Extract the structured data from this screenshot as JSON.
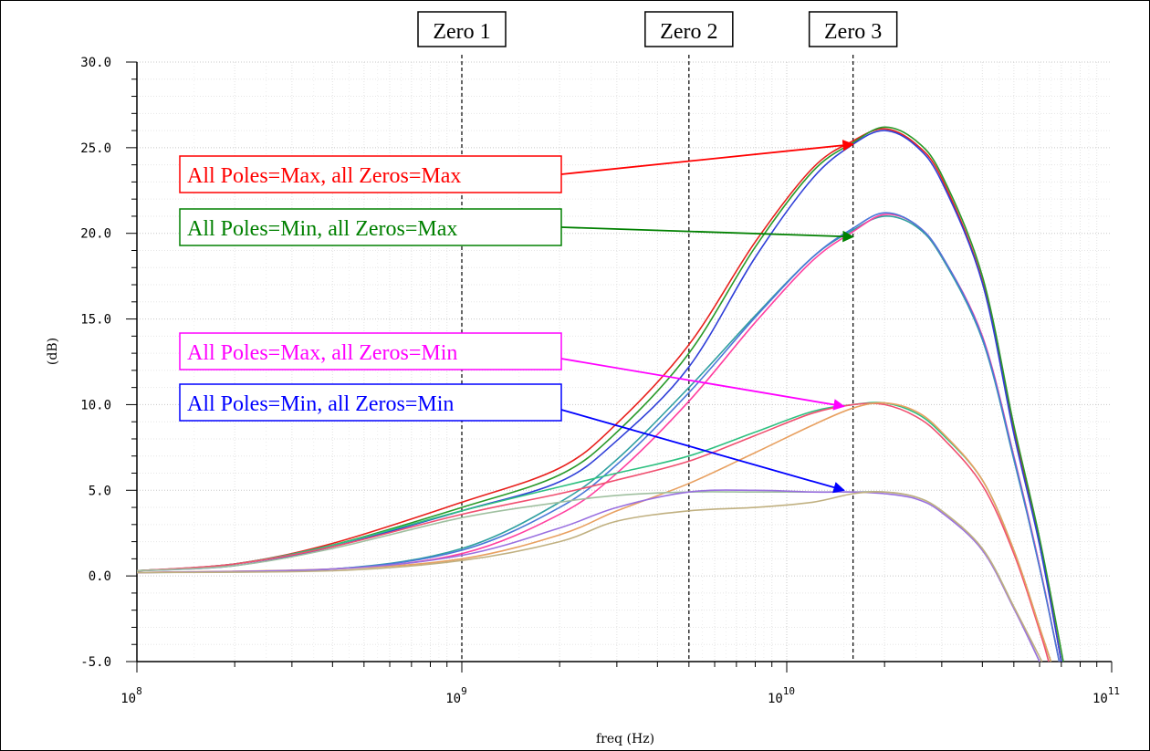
{
  "chart_data": {
    "type": "line",
    "title": "",
    "xlabel": "freq (Hz)",
    "ylabel": "(dB)",
    "xscale": "log",
    "xlim": [
      100000000,
      100000000000
    ],
    "ylim": [
      -5,
      30
    ],
    "grid": true,
    "x_ticks": [
      {
        "value": 100000000,
        "base": "10",
        "exp": "8"
      },
      {
        "value": 1000000000,
        "base": "10",
        "exp": "9"
      },
      {
        "value": 10000000000,
        "base": "10",
        "exp": "10"
      },
      {
        "value": 100000000000,
        "base": "10",
        "exp": "11"
      }
    ],
    "y_ticks": [
      "30.0",
      "25.0",
      "20.0",
      "15.0",
      "10.0",
      "5.0",
      "0.0",
      "-5.0"
    ],
    "markers": [
      {
        "label": "Zero 1",
        "x": 1000000000
      },
      {
        "label": "Zero 2",
        "x": 5000000000
      },
      {
        "label": "Zero 3",
        "x": 16000000000
      }
    ],
    "annotations": [
      {
        "text": "All Poles=Max, all Zeros=Max",
        "color": "#ff0000",
        "target_x": 16000000000,
        "target_y": 25.2
      },
      {
        "text": "All Poles=Min, all Zeros=Max",
        "color": "#008000",
        "target_x": 16000000000,
        "target_y": 19.8
      },
      {
        "text": "All Poles=Max, all Zeros=Min",
        "color": "#ff00ff",
        "target_x": 15000000000,
        "target_y": 9.9
      },
      {
        "text": "All Poles=Min, all Zeros=Min",
        "color": "#0000ff",
        "target_x": 15000000000,
        "target_y": 5.0
      }
    ],
    "series": [
      {
        "color": "#e8201c",
        "points": [
          [
            100000000,
            0.3
          ],
          [
            200000000,
            0.7
          ],
          [
            400000000,
            1.9
          ],
          [
            1000000000,
            4.3
          ],
          [
            2000000000,
            6.3
          ],
          [
            3000000000,
            8.9
          ],
          [
            5000000000,
            13.5
          ],
          [
            8000000000,
            19.5
          ],
          [
            12000000000,
            23.8
          ],
          [
            16000000000,
            25.4
          ],
          [
            20000000000,
            26.1
          ],
          [
            25000000000,
            25.2
          ],
          [
            30000000000,
            23.2
          ],
          [
            40000000000,
            17.2
          ],
          [
            50000000000,
            8.5
          ],
          [
            60000000000,
            2.0
          ],
          [
            70000000000,
            -5.0
          ]
        ]
      },
      {
        "color": "#2a9a2a",
        "points": [
          [
            100000000,
            0.3
          ],
          [
            200000000,
            0.7
          ],
          [
            400000000,
            1.8
          ],
          [
            1000000000,
            4.0
          ],
          [
            2000000000,
            5.9
          ],
          [
            3000000000,
            8.4
          ],
          [
            5000000000,
            13.0
          ],
          [
            8000000000,
            19.2
          ],
          [
            12000000000,
            23.6
          ],
          [
            16000000000,
            25.3
          ],
          [
            20000000000,
            26.2
          ],
          [
            25000000000,
            25.4
          ],
          [
            30000000000,
            23.4
          ],
          [
            40000000000,
            17.5
          ],
          [
            50000000000,
            8.8
          ],
          [
            60000000000,
            2.2
          ],
          [
            71000000000,
            -5.0
          ]
        ]
      },
      {
        "color": "#2f3fd8",
        "points": [
          [
            100000000,
            0.3
          ],
          [
            200000000,
            0.6
          ],
          [
            400000000,
            1.7
          ],
          [
            1000000000,
            3.8
          ],
          [
            2000000000,
            5.5
          ],
          [
            3000000000,
            7.9
          ],
          [
            5000000000,
            12.2
          ],
          [
            8000000000,
            18.6
          ],
          [
            12000000000,
            23.2
          ],
          [
            16000000000,
            25.2
          ],
          [
            20000000000,
            26.0
          ],
          [
            25000000000,
            25.1
          ],
          [
            30000000000,
            23.0
          ],
          [
            40000000000,
            17.1
          ],
          [
            50000000000,
            8.3
          ],
          [
            60000000000,
            1.8
          ],
          [
            70000000000,
            -5.0
          ]
        ]
      },
      {
        "color": "#30a0a0",
        "points": [
          [
            100000000,
            0.2
          ],
          [
            400000000,
            0.4
          ],
          [
            1000000000,
            1.6
          ],
          [
            2000000000,
            4.3
          ],
          [
            3000000000,
            6.8
          ],
          [
            5000000000,
            11.0
          ],
          [
            8000000000,
            15.2
          ],
          [
            12000000000,
            18.6
          ],
          [
            16000000000,
            20.2
          ],
          [
            20000000000,
            21.0
          ],
          [
            25000000000,
            20.4
          ],
          [
            30000000000,
            18.6
          ],
          [
            40000000000,
            13.8
          ],
          [
            50000000000,
            6.8
          ],
          [
            60000000000,
            0.5
          ],
          [
            69000000000,
            -5.0
          ]
        ]
      },
      {
        "color": "#ff40a0",
        "points": [
          [
            100000000,
            0.2
          ],
          [
            400000000,
            0.4
          ],
          [
            1000000000,
            1.3
          ],
          [
            2000000000,
            3.6
          ],
          [
            3000000000,
            6.0
          ],
          [
            5000000000,
            10.2
          ],
          [
            8000000000,
            14.8
          ],
          [
            12000000000,
            18.4
          ],
          [
            16000000000,
            20.1
          ],
          [
            20000000000,
            21.1
          ],
          [
            25000000000,
            20.5
          ],
          [
            30000000000,
            18.7
          ],
          [
            40000000000,
            14.0
          ],
          [
            50000000000,
            7.0
          ],
          [
            60000000000,
            0.6
          ],
          [
            69000000000,
            -5.0
          ]
        ]
      },
      {
        "color": "#4a78d8",
        "points": [
          [
            100000000,
            0.2
          ],
          [
            400000000,
            0.4
          ],
          [
            1000000000,
            1.5
          ],
          [
            2000000000,
            4.0
          ],
          [
            3000000000,
            6.5
          ],
          [
            5000000000,
            10.7
          ],
          [
            8000000000,
            15.1
          ],
          [
            12000000000,
            18.6
          ],
          [
            16000000000,
            20.3
          ],
          [
            20000000000,
            21.2
          ],
          [
            25000000000,
            20.5
          ],
          [
            30000000000,
            18.7
          ],
          [
            40000000000,
            13.9
          ],
          [
            50000000000,
            6.9
          ],
          [
            60000000000,
            0.5
          ],
          [
            69000000000,
            -5.0
          ]
        ]
      },
      {
        "color": "#2ec080",
        "points": [
          [
            100000000,
            0.3
          ],
          [
            200000000,
            0.7
          ],
          [
            400000000,
            1.8
          ],
          [
            1000000000,
            3.8
          ],
          [
            2000000000,
            5.2
          ],
          [
            3000000000,
            6.0
          ],
          [
            5000000000,
            7.0
          ],
          [
            8000000000,
            8.4
          ],
          [
            12000000000,
            9.6
          ],
          [
            16000000000,
            10.0
          ],
          [
            20000000000,
            10.1
          ],
          [
            25000000000,
            9.5
          ],
          [
            30000000000,
            8.3
          ],
          [
            40000000000,
            5.6
          ],
          [
            50000000000,
            1.5
          ],
          [
            60000000000,
            -3.0
          ],
          [
            65000000000,
            -5.0
          ]
        ]
      },
      {
        "color": "#f05070",
        "points": [
          [
            100000000,
            0.3
          ],
          [
            200000000,
            0.7
          ],
          [
            400000000,
            1.7
          ],
          [
            1000000000,
            3.6
          ],
          [
            2000000000,
            4.8
          ],
          [
            3000000000,
            5.6
          ],
          [
            5000000000,
            6.7
          ],
          [
            8000000000,
            8.2
          ],
          [
            12000000000,
            9.5
          ],
          [
            16000000000,
            10.0
          ],
          [
            20000000000,
            10.0
          ],
          [
            25000000000,
            9.3
          ],
          [
            30000000000,
            8.1
          ],
          [
            40000000000,
            5.3
          ],
          [
            50000000000,
            1.3
          ],
          [
            60000000000,
            -3.2
          ],
          [
            64000000000,
            -5.0
          ]
        ]
      },
      {
        "color": "#e8a060",
        "points": [
          [
            100000000,
            0.2
          ],
          [
            400000000,
            0.4
          ],
          [
            1000000000,
            1.0
          ],
          [
            2000000000,
            2.4
          ],
          [
            3000000000,
            3.8
          ],
          [
            5000000000,
            5.4
          ],
          [
            8000000000,
            7.2
          ],
          [
            12000000000,
            8.8
          ],
          [
            16000000000,
            9.8
          ],
          [
            20000000000,
            10.1
          ],
          [
            25000000000,
            9.6
          ],
          [
            30000000000,
            8.4
          ],
          [
            40000000000,
            5.6
          ],
          [
            50000000000,
            1.5
          ],
          [
            60000000000,
            -3.0
          ],
          [
            65000000000,
            -5.0
          ]
        ]
      },
      {
        "color": "#a0c0a0",
        "points": [
          [
            100000000,
            0.3
          ],
          [
            200000000,
            0.6
          ],
          [
            400000000,
            1.6
          ],
          [
            1000000000,
            3.4
          ],
          [
            2000000000,
            4.3
          ],
          [
            3000000000,
            4.7
          ],
          [
            5000000000,
            4.9
          ],
          [
            8000000000,
            4.9
          ],
          [
            12000000000,
            4.9
          ],
          [
            16000000000,
            4.9
          ],
          [
            20000000000,
            4.9
          ],
          [
            25000000000,
            4.6
          ],
          [
            30000000000,
            3.8
          ],
          [
            40000000000,
            1.6
          ],
          [
            50000000000,
            -1.8
          ],
          [
            60000000000,
            -5.0
          ]
        ]
      },
      {
        "color": "#9a70e0",
        "points": [
          [
            100000000,
            0.2
          ],
          [
            400000000,
            0.4
          ],
          [
            1000000000,
            1.2
          ],
          [
            2000000000,
            2.8
          ],
          [
            3000000000,
            4.0
          ],
          [
            5000000000,
            4.9
          ],
          [
            8000000000,
            5.0
          ],
          [
            12000000000,
            4.9
          ],
          [
            16000000000,
            4.9
          ],
          [
            20000000000,
            4.8
          ],
          [
            25000000000,
            4.5
          ],
          [
            30000000000,
            3.7
          ],
          [
            40000000000,
            1.5
          ],
          [
            50000000000,
            -1.9
          ],
          [
            60000000000,
            -5.0
          ]
        ]
      },
      {
        "color": "#c0b080",
        "points": [
          [
            100000000,
            0.2
          ],
          [
            400000000,
            0.3
          ],
          [
            1000000000,
            0.9
          ],
          [
            2000000000,
            2.0
          ],
          [
            3000000000,
            3.2
          ],
          [
            5000000000,
            3.8
          ],
          [
            8000000000,
            4.0
          ],
          [
            12000000000,
            4.3
          ],
          [
            16000000000,
            4.8
          ],
          [
            20000000000,
            4.9
          ],
          [
            25000000000,
            4.6
          ],
          [
            30000000000,
            3.8
          ],
          [
            40000000000,
            1.6
          ],
          [
            50000000000,
            -1.8
          ],
          [
            61000000000,
            -5.0
          ]
        ]
      }
    ]
  }
}
